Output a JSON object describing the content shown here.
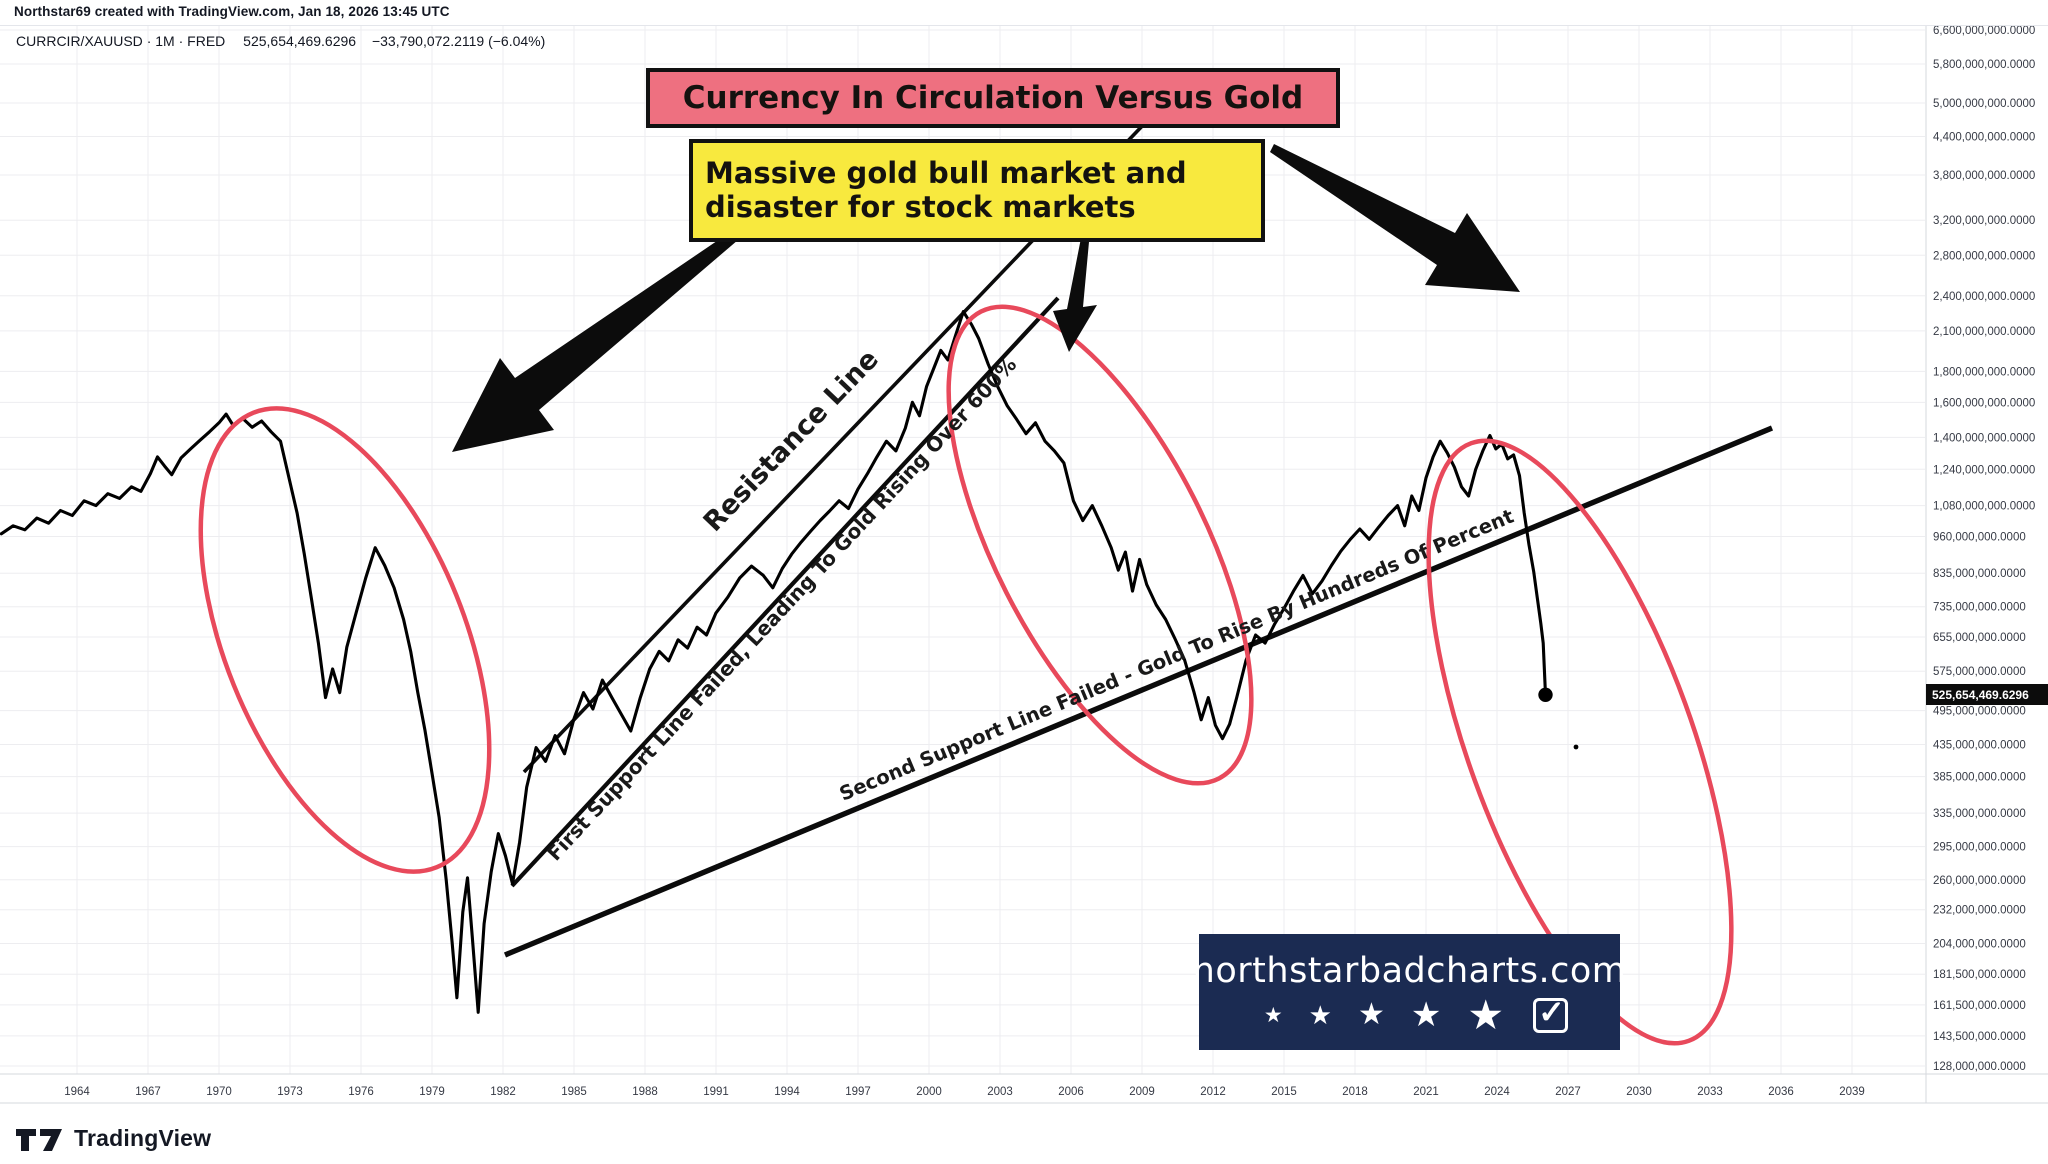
{
  "header": {
    "credit": "Northstar69 created with TradingView.com, Jan 18, 2026 13:45 UTC",
    "symbol": "CURRCIR/XAUUSD",
    "interval": "1M",
    "source": "FRED",
    "separator": "·",
    "last_value": "525,654,469.6296",
    "change": "−33,790,072.2119 (−6.04%)"
  },
  "annotations": {
    "title": "Currency In Circulation Versus Gold",
    "subtitle_line1": "Massive gold bull market and",
    "subtitle_line2": "disaster for stock markets",
    "resistance_label": "Resistance Line",
    "support1_label": "First Support Line Failed, Leading To Gold Rising Over 600%",
    "support2_label": "Second Support Line Failed - Gold To Rise By Hundreds Of Percent",
    "colors": {
      "title_bg": "#ee7080",
      "subtitle_bg": "#f8e93e",
      "ellipse": "#e8495b",
      "series": "#000000",
      "price_tag_bg": "#0c0c0c"
    }
  },
  "badge": {
    "domain": "northstarbadcharts.com",
    "star_count": 5,
    "star_icon": "★",
    "checkbox_icon": "✓",
    "bg": "#1b2b52"
  },
  "price_scale": {
    "last_price_label": "525,654,469.6296",
    "labels": [
      "6,600,000,000.0000",
      "5,800,000,000.0000",
      "5,000,000,000.0000",
      "4,400,000,000.0000",
      "3,800,000,000.0000",
      "3,200,000,000.0000",
      "2,800,000,000.0000",
      "2,400,000,000.0000",
      "2,100,000,000.0000",
      "1,800,000,000.0000",
      "1,600,000,000.0000",
      "1,400,000,000.0000",
      "1,240,000,000.0000",
      "1,080,000,000.0000",
      "960,000,000.0000",
      "835,000,000.0000",
      "735,000,000.0000",
      "655,000,000.0000",
      "575,000,000.0000",
      "495,000,000.0000",
      "435,000,000.0000",
      "385,000,000.0000",
      "335,000,000.0000",
      "295,000,000.0000",
      "260,000,000.0000",
      "232,000,000.0000",
      "204,000,000.0000",
      "181,500,000.0000",
      "161,500,000.0000",
      "143,500,000.0000",
      "128,000,000.0000"
    ]
  },
  "time_scale": {
    "years": [
      1964,
      1967,
      1970,
      1973,
      1976,
      1979,
      1982,
      1985,
      1988,
      1991,
      1994,
      1997,
      2000,
      2003,
      2006,
      2009,
      2012,
      2015,
      2018,
      2021,
      2024,
      2027,
      2030,
      2033,
      2036,
      2039
    ]
  },
  "watermark": {
    "brand": "TradingView"
  },
  "chart_data": {
    "type": "line",
    "series_name": "CURRCIR/XAUUSD (Currency In Circulation / Gold)",
    "x_unit": "year",
    "log_scale": true,
    "xlim": [
      1960.75,
      2042.1
    ],
    "ylim": [
      128000000,
      6600000000
    ],
    "grid": true,
    "legend": "none",
    "last_point": [
      2026.05,
      525654469.6296
    ],
    "points": [
      [
        1960.8,
        970000000
      ],
      [
        1961.3,
        1000000000
      ],
      [
        1961.8,
        985000000
      ],
      [
        1962.3,
        1030000000
      ],
      [
        1962.8,
        1010000000
      ],
      [
        1963.3,
        1060000000
      ],
      [
        1963.8,
        1040000000
      ],
      [
        1964.3,
        1100000000
      ],
      [
        1964.8,
        1080000000
      ],
      [
        1965.3,
        1130000000
      ],
      [
        1965.8,
        1110000000
      ],
      [
        1966.3,
        1160000000
      ],
      [
        1966.7,
        1140000000
      ],
      [
        1967.1,
        1220000000
      ],
      [
        1967.4,
        1300000000
      ],
      [
        1967.7,
        1255000000
      ],
      [
        1968.0,
        1215000000
      ],
      [
        1968.4,
        1295000000
      ],
      [
        1968.8,
        1340000000
      ],
      [
        1969.2,
        1385000000
      ],
      [
        1969.6,
        1430000000
      ],
      [
        1970.0,
        1480000000
      ],
      [
        1970.3,
        1530000000
      ],
      [
        1970.6,
        1465000000
      ],
      [
        1971.0,
        1505000000
      ],
      [
        1971.4,
        1455000000
      ],
      [
        1971.8,
        1490000000
      ],
      [
        1972.2,
        1430000000
      ],
      [
        1972.6,
        1380000000
      ],
      [
        1973.0,
        1180000000
      ],
      [
        1973.3,
        1050000000
      ],
      [
        1973.6,
        900000000
      ],
      [
        1973.9,
        760000000
      ],
      [
        1974.2,
        640000000
      ],
      [
        1974.5,
        520000000
      ],
      [
        1974.8,
        580000000
      ],
      [
        1975.1,
        530000000
      ],
      [
        1975.4,
        630000000
      ],
      [
        1975.8,
        720000000
      ],
      [
        1976.2,
        820000000
      ],
      [
        1976.6,
        920000000
      ],
      [
        1977.0,
        860000000
      ],
      [
        1977.4,
        790000000
      ],
      [
        1977.8,
        700000000
      ],
      [
        1978.1,
        620000000
      ],
      [
        1978.4,
        530000000
      ],
      [
        1978.7,
        460000000
      ],
      [
        1979.0,
        390000000
      ],
      [
        1979.3,
        330000000
      ],
      [
        1979.6,
        260000000
      ],
      [
        1979.85,
        205000000
      ],
      [
        1980.05,
        166000000
      ],
      [
        1980.3,
        230000000
      ],
      [
        1980.5,
        262000000
      ],
      [
        1980.7,
        210000000
      ],
      [
        1980.95,
        157000000
      ],
      [
        1981.2,
        220000000
      ],
      [
        1981.5,
        268000000
      ],
      [
        1981.8,
        310000000
      ],
      [
        1982.1,
        285000000
      ],
      [
        1982.4,
        256000000
      ],
      [
        1982.7,
        300000000
      ],
      [
        1983.0,
        370000000
      ],
      [
        1983.4,
        430000000
      ],
      [
        1983.8,
        408000000
      ],
      [
        1984.2,
        450000000
      ],
      [
        1984.6,
        420000000
      ],
      [
        1985.0,
        480000000
      ],
      [
        1985.4,
        530000000
      ],
      [
        1985.8,
        498000000
      ],
      [
        1986.2,
        556000000
      ],
      [
        1986.6,
        520000000
      ],
      [
        1987.0,
        488000000
      ],
      [
        1987.4,
        458000000
      ],
      [
        1987.8,
        520000000
      ],
      [
        1988.2,
        580000000
      ],
      [
        1988.6,
        620000000
      ],
      [
        1989.0,
        598000000
      ],
      [
        1989.4,
        648000000
      ],
      [
        1989.8,
        628000000
      ],
      [
        1990.2,
        680000000
      ],
      [
        1990.6,
        660000000
      ],
      [
        1991.0,
        718000000
      ],
      [
        1991.5,
        762000000
      ],
      [
        1992.0,
        820000000
      ],
      [
        1992.5,
        858000000
      ],
      [
        1993.0,
        828000000
      ],
      [
        1993.4,
        790000000
      ],
      [
        1993.8,
        850000000
      ],
      [
        1994.2,
        898000000
      ],
      [
        1994.6,
        940000000
      ],
      [
        1995.0,
        980000000
      ],
      [
        1995.4,
        1020000000
      ],
      [
        1995.8,
        1058000000
      ],
      [
        1996.2,
        1100000000
      ],
      [
        1996.6,
        1068000000
      ],
      [
        1997.0,
        1150000000
      ],
      [
        1997.4,
        1220000000
      ],
      [
        1997.8,
        1300000000
      ],
      [
        1998.2,
        1380000000
      ],
      [
        1998.6,
        1330000000
      ],
      [
        1999.0,
        1450000000
      ],
      [
        1999.3,
        1600000000
      ],
      [
        1999.6,
        1520000000
      ],
      [
        1999.9,
        1700000000
      ],
      [
        2000.2,
        1820000000
      ],
      [
        2000.5,
        1950000000
      ],
      [
        2000.8,
        1880000000
      ],
      [
        2001.1,
        2050000000
      ],
      [
        2001.45,
        2260000000
      ],
      [
        2001.8,
        2150000000
      ],
      [
        2002.1,
        2040000000
      ],
      [
        2002.5,
        1850000000
      ],
      [
        2002.9,
        1700000000
      ],
      [
        2003.3,
        1580000000
      ],
      [
        2003.7,
        1500000000
      ],
      [
        2004.1,
        1420000000
      ],
      [
        2004.5,
        1480000000
      ],
      [
        2004.9,
        1380000000
      ],
      [
        2005.3,
        1330000000
      ],
      [
        2005.7,
        1270000000
      ],
      [
        2006.1,
        1100000000
      ],
      [
        2006.5,
        1020000000
      ],
      [
        2006.9,
        1080000000
      ],
      [
        2007.3,
        1000000000
      ],
      [
        2007.7,
        920000000
      ],
      [
        2008.0,
        845000000
      ],
      [
        2008.3,
        905000000
      ],
      [
        2008.6,
        780000000
      ],
      [
        2008.9,
        880000000
      ],
      [
        2009.2,
        800000000
      ],
      [
        2009.6,
        740000000
      ],
      [
        2010.0,
        700000000
      ],
      [
        2010.4,
        650000000
      ],
      [
        2010.8,
        600000000
      ],
      [
        2011.2,
        530000000
      ],
      [
        2011.5,
        478000000
      ],
      [
        2011.8,
        520000000
      ],
      [
        2012.1,
        468000000
      ],
      [
        2012.4,
        445000000
      ],
      [
        2012.7,
        470000000
      ],
      [
        2013.0,
        520000000
      ],
      [
        2013.4,
        600000000
      ],
      [
        2013.8,
        660000000
      ],
      [
        2014.2,
        640000000
      ],
      [
        2014.6,
        688000000
      ],
      [
        2015.0,
        730000000
      ],
      [
        2015.4,
        780000000
      ],
      [
        2015.8,
        828000000
      ],
      [
        2016.2,
        772000000
      ],
      [
        2016.6,
        810000000
      ],
      [
        2017.0,
        860000000
      ],
      [
        2017.4,
        908000000
      ],
      [
        2017.8,
        950000000
      ],
      [
        2018.2,
        988000000
      ],
      [
        2018.6,
        950000000
      ],
      [
        2019.0,
        995000000
      ],
      [
        2019.4,
        1040000000
      ],
      [
        2019.8,
        1080000000
      ],
      [
        2020.1,
        1000000000
      ],
      [
        2020.4,
        1120000000
      ],
      [
        2020.7,
        1060000000
      ],
      [
        2021.0,
        1200000000
      ],
      [
        2021.3,
        1300000000
      ],
      [
        2021.6,
        1380000000
      ],
      [
        2021.9,
        1320000000
      ],
      [
        2022.2,
        1250000000
      ],
      [
        2022.5,
        1160000000
      ],
      [
        2022.8,
        1120000000
      ],
      [
        2023.1,
        1240000000
      ],
      [
        2023.4,
        1330000000
      ],
      [
        2023.7,
        1410000000
      ],
      [
        2023.95,
        1340000000
      ],
      [
        2024.2,
        1365000000
      ],
      [
        2024.45,
        1290000000
      ],
      [
        2024.7,
        1310000000
      ],
      [
        2024.95,
        1210000000
      ],
      [
        2025.15,
        1050000000
      ],
      [
        2025.35,
        930000000
      ],
      [
        2025.55,
        840000000
      ],
      [
        2025.7,
        760000000
      ],
      [
        2025.85,
        690000000
      ],
      [
        2025.95,
        640000000
      ],
      [
        2026.05,
        525654469.6296
      ]
    ]
  }
}
